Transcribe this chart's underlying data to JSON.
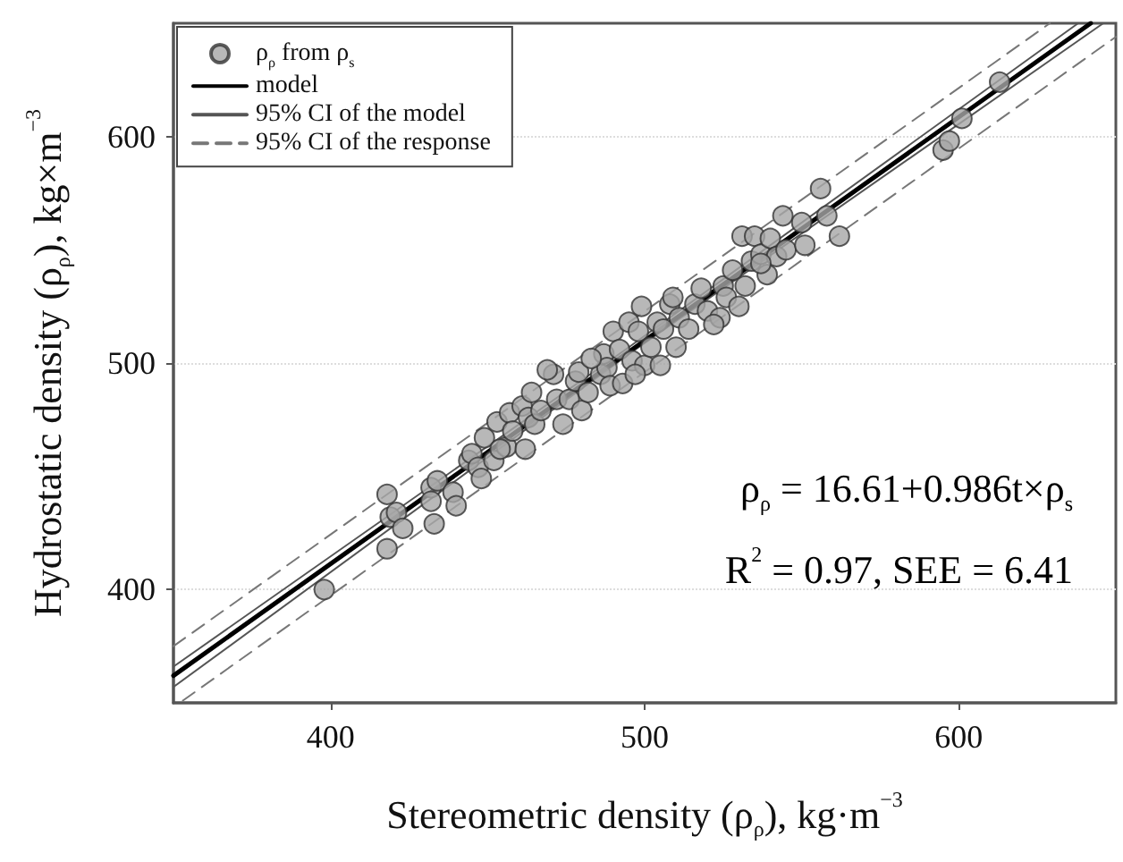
{
  "chart_data": {
    "type": "scatter",
    "xlabel": "Stereometric density (ρ$_{ρ}$), kg·m$^{−3}$",
    "ylabel": "Hydrostatic density (ρ$_{ρ}$), kg×m$^{−3}$",
    "xlim": [
      350,
      650
    ],
    "ylim": [
      350,
      650
    ],
    "xticks": [
      400,
      500,
      600
    ],
    "yticks": [
      400,
      500,
      600
    ],
    "grid": "y",
    "legend": "top left",
    "marker": "circle",
    "annotations": [
      "ρ$_{ρ}$ = 16.61+0.986t×ρ$_{s}$",
      "R$^{2}$ = 0.97, SEE = 6.41"
    ],
    "series": [
      {
        "name": "ρ$_{ρ}$ from ρ$_{s}$",
        "color": "#a6a6a6",
        "x": [
          398,
          418,
          418,
          419,
          421,
          423,
          432,
          432,
          434,
          433,
          439,
          440,
          444,
          445,
          447,
          448,
          449,
          453,
          452,
          456,
          457,
          458,
          461,
          462,
          463,
          464,
          465,
          467,
          471,
          472,
          474,
          476,
          478,
          479,
          480,
          482,
          486,
          487,
          488,
          489,
          490,
          492,
          493,
          495,
          496,
          498,
          499,
          500,
          502,
          504,
          505,
          506,
          508,
          509,
          511,
          514,
          516,
          518,
          520,
          524,
          525,
          526,
          528,
          530,
          531,
          532,
          534,
          535,
          537,
          539,
          540,
          542,
          544,
          545,
          550,
          556,
          558,
          562,
          595,
          597,
          601,
          613,
          454,
          469,
          483,
          497,
          510,
          522,
          537,
          551
        ],
        "values": [
          400,
          442,
          418,
          432,
          434,
          427,
          445,
          439,
          448,
          429,
          443,
          437,
          457,
          460,
          454,
          449,
          467,
          474,
          457,
          463,
          478,
          470,
          481,
          462,
          476,
          487,
          473,
          479,
          495,
          484,
          473,
          484,
          492,
          496,
          479,
          487,
          495,
          504,
          498,
          490,
          514,
          506,
          491,
          518,
          501,
          514,
          525,
          499,
          507,
          518,
          499,
          515,
          526,
          529,
          520,
          515,
          526,
          533,
          523,
          520,
          534,
          529,
          541,
          525,
          556,
          534,
          545,
          556,
          548,
          539,
          555,
          547,
          565,
          550,
          562,
          577,
          565,
          556,
          594,
          598,
          608,
          624,
          462,
          497,
          502,
          495,
          507,
          517,
          544,
          552
        ]
      },
      {
        "name": "model",
        "type": "line",
        "color": "#000000",
        "line_style": "solid",
        "marker": "none",
        "x": [
          350,
          642
        ],
        "values": [
          362,
          650
        ]
      },
      {
        "name": "95% CI of the model",
        "type": "line",
        "color": "#555555",
        "line_style": "solid",
        "marker": "none",
        "x": [
          350,
          495,
          638
        ],
        "values": [
          366,
          507,
          650
        ]
      },
      {
        "type": "line",
        "color": "#555555",
        "line_style": "solid",
        "marker": "none",
        "x": [
          350,
          495,
          646
        ],
        "values": [
          357,
          504,
          650
        ]
      },
      {
        "name": "95% CI of the response",
        "type": "line",
        "color": "#777777",
        "line_style": "dashed",
        "marker": "none",
        "x": [
          350,
          629
        ],
        "values": [
          375,
          650
        ]
      },
      {
        "type": "line",
        "color": "#777777",
        "line_style": "dashed",
        "marker": "none",
        "x": [
          353,
          650
        ],
        "values": [
          351,
          644
        ]
      }
    ]
  }
}
